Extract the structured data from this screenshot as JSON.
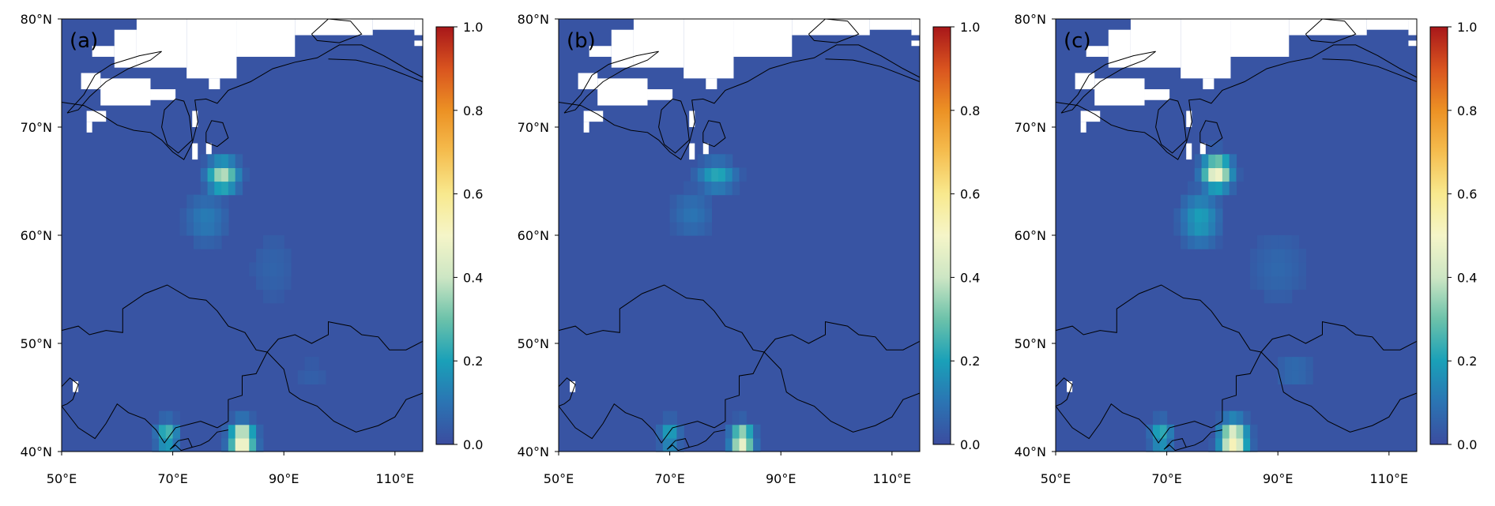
{
  "chart_data": [
    {
      "type": "heatmap",
      "panel_label": "(a)",
      "xlim": [
        50,
        115
      ],
      "ylim": [
        40,
        80
      ],
      "x_ticks": [
        50,
        70,
        90,
        110
      ],
      "x_tick_labels": [
        "50°E",
        "70°E",
        "90°E",
        "110°E"
      ],
      "y_ticks": [
        40,
        50,
        60,
        70,
        80
      ],
      "y_tick_labels": [
        "40°N",
        "50°N",
        "60°N",
        "70°N",
        "80°N"
      ],
      "colorbar": {
        "range": [
          0.0,
          1.0
        ],
        "ticks": [
          0.0,
          0.2,
          0.4,
          0.6,
          0.8,
          1.0
        ],
        "tick_labels": [
          "0.0",
          "0.2",
          "0.4",
          "0.6",
          "0.8",
          "1.0"
        ]
      },
      "hotspots": [
        {
          "lon": 79,
          "lat": 65.5,
          "value": 0.38,
          "spread_lon": 2.8,
          "spread_lat": 1.5
        },
        {
          "lon": 76,
          "lat": 61.5,
          "value": 0.12,
          "spread_lon": 4,
          "spread_lat": 2.5
        },
        {
          "lon": 82.5,
          "lat": 41,
          "value": 0.55,
          "spread_lon": 2.2,
          "spread_lat": 1.6
        },
        {
          "lon": 69,
          "lat": 41.5,
          "value": 0.28,
          "spread_lon": 2,
          "spread_lat": 1.4
        },
        {
          "lon": 88,
          "lat": 57,
          "value": 0.06,
          "spread_lon": 5,
          "spread_lat": 4
        },
        {
          "lon": 95,
          "lat": 47,
          "value": 0.05,
          "spread_lon": 4,
          "spread_lat": 2
        }
      ]
    },
    {
      "type": "heatmap",
      "panel_label": "(b)",
      "xlim": [
        50,
        115
      ],
      "ylim": [
        40,
        80
      ],
      "x_ticks": [
        50,
        70,
        90,
        110
      ],
      "x_tick_labels": [
        "50°E",
        "70°E",
        "90°E",
        "110°E"
      ],
      "y_ticks": [
        40,
        50,
        60,
        70,
        80
      ],
      "y_tick_labels": [
        "40°N",
        "50°N",
        "60°N",
        "70°N",
        "80°N"
      ],
      "colorbar": {
        "range": [
          0.0,
          1.0
        ],
        "ticks": [
          0.0,
          0.2,
          0.4,
          0.6,
          0.8,
          1.0
        ],
        "tick_labels": [
          "0.0",
          "0.2",
          "0.4",
          "0.6",
          "0.8",
          "1.0"
        ]
      },
      "hotspots": [
        {
          "lon": 78.5,
          "lat": 65.5,
          "value": 0.22,
          "spread_lon": 3.5,
          "spread_lat": 1.4
        },
        {
          "lon": 74,
          "lat": 62,
          "value": 0.1,
          "spread_lon": 4,
          "spread_lat": 2.5
        },
        {
          "lon": 83,
          "lat": 41,
          "value": 0.5,
          "spread_lon": 2,
          "spread_lat": 1.4
        },
        {
          "lon": 70,
          "lat": 41.5,
          "value": 0.22,
          "spread_lon": 1.8,
          "spread_lat": 1.4
        }
      ]
    },
    {
      "type": "heatmap",
      "panel_label": "(c)",
      "xlim": [
        50,
        115
      ],
      "ylim": [
        40,
        80
      ],
      "x_ticks": [
        50,
        70,
        90,
        110
      ],
      "x_tick_labels": [
        "50°E",
        "70°E",
        "90°E",
        "110°E"
      ],
      "y_ticks": [
        40,
        50,
        60,
        70,
        80
      ],
      "y_tick_labels": [
        "40°N",
        "50°N",
        "60°N",
        "70°N",
        "80°N"
      ],
      "colorbar": {
        "range": [
          0.0,
          1.0
        ],
        "ticks": [
          0.0,
          0.2,
          0.4,
          0.6,
          0.8,
          1.0
        ],
        "tick_labels": [
          "0.0",
          "0.2",
          "0.4",
          "0.6",
          "0.8",
          "1.0"
        ]
      },
      "hotspots": [
        {
          "lon": 79,
          "lat": 65.8,
          "value": 0.5,
          "spread_lon": 2.6,
          "spread_lat": 1.5
        },
        {
          "lon": 76,
          "lat": 61.5,
          "value": 0.2,
          "spread_lon": 3.5,
          "spread_lat": 2.5
        },
        {
          "lon": 82,
          "lat": 41,
          "value": 0.55,
          "spread_lon": 2.4,
          "spread_lat": 1.8
        },
        {
          "lon": 69,
          "lat": 41.5,
          "value": 0.25,
          "spread_lon": 2,
          "spread_lat": 1.4
        },
        {
          "lon": 90,
          "lat": 57,
          "value": 0.07,
          "spread_lon": 6,
          "spread_lat": 4
        },
        {
          "lon": 93,
          "lat": 47.5,
          "value": 0.08,
          "spread_lon": 4,
          "spread_lat": 2
        }
      ]
    }
  ]
}
